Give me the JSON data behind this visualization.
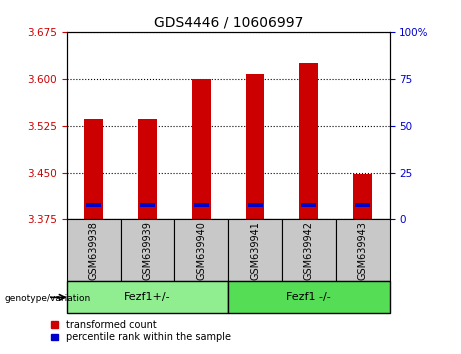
{
  "title": "GDS4446 / 10606997",
  "samples": [
    "GSM639938",
    "GSM639939",
    "GSM639940",
    "GSM639941",
    "GSM639942",
    "GSM639943"
  ],
  "red_values": [
    3.535,
    3.535,
    3.6,
    3.607,
    3.625,
    3.448
  ],
  "blue_values": [
    3.395,
    3.395,
    3.395,
    3.395,
    3.395,
    3.395
  ],
  "bar_bottom": 3.375,
  "ylim_left": [
    3.375,
    3.675
  ],
  "ylim_right": [
    0,
    100
  ],
  "yticks_left": [
    3.375,
    3.45,
    3.525,
    3.6,
    3.675
  ],
  "yticks_right": [
    0,
    25,
    50,
    75,
    100
  ],
  "ytick_labels_right": [
    "0",
    "25",
    "50",
    "75",
    "100%"
  ],
  "group1_label": "Fezf1+/-",
  "group2_label": "Fezf1 -/-",
  "group1_indices": [
    0,
    1,
    2
  ],
  "group2_indices": [
    3,
    4,
    5
  ],
  "genotype_label": "genotype/variation",
  "legend1": "transformed count",
  "legend2": "percentile rank within the sample",
  "red_color": "#cc0000",
  "blue_color": "#0000cc",
  "group_bg1": "#90ee90",
  "group_bg2": "#55dd55",
  "sample_bg": "#c8c8c8",
  "bar_width": 0.35,
  "blue_bar_width": 0.28,
  "blue_bar_height": 0.007,
  "title_fontsize": 10,
  "tick_fontsize": 7.5,
  "sample_fontsize": 7,
  "group_fontsize": 8,
  "legend_fontsize": 7
}
